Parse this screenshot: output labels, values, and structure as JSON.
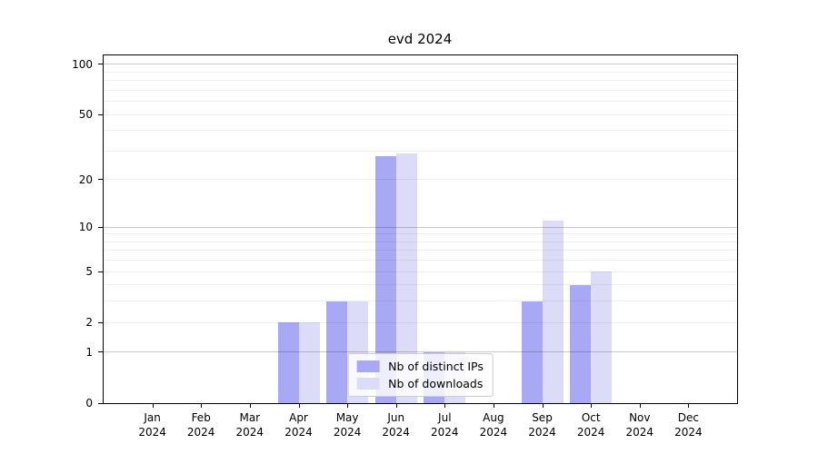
{
  "chart_data": {
    "type": "bar",
    "title": "evd 2024",
    "categories": [
      "Jan 2024",
      "Feb 2024",
      "Mar 2024",
      "Apr 2024",
      "May 2024",
      "Jun 2024",
      "Jul 2024",
      "Aug 2024",
      "Sep 2024",
      "Oct 2024",
      "Nov 2024",
      "Dec 2024"
    ],
    "series": [
      {
        "name": "Nb of distinct IPs",
        "color": "#a8a8f5",
        "values": [
          0,
          0,
          0,
          2,
          3,
          28,
          1,
          0,
          3,
          4,
          0,
          0
        ]
      },
      {
        "name": "Nb of downloads",
        "color": "#dcdcf8",
        "values": [
          0,
          0,
          0,
          2,
          3,
          29,
          1,
          0,
          11,
          5,
          0,
          0
        ]
      }
    ],
    "y_axis": {
      "scale": "log1p",
      "ticks": [
        0,
        1,
        2,
        5,
        10,
        20,
        50,
        100
      ],
      "major": [
        1,
        10,
        100
      ],
      "minor": [
        3,
        4,
        6,
        7,
        8,
        9,
        30,
        40,
        60,
        70,
        80,
        90
      ],
      "axis_top_value": 113
    },
    "ylim": [
      0,
      100
    ],
    "xlabel": "",
    "ylabel": "",
    "grid": true,
    "legend_position": "lower center"
  }
}
